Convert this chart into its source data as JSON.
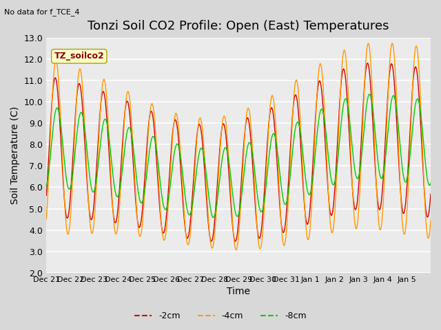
{
  "title": "Tonzi Soil CO2 Profile: Open (East) Temperatures",
  "subtitle": "No data for f_TCE_4",
  "ylabel": "Soil Temperature (C)",
  "xlabel": "Time",
  "legend_label": "TZ_soilco2",
  "ylim": [
    2.0,
    13.0
  ],
  "yticks": [
    2.0,
    3.0,
    4.0,
    5.0,
    6.0,
    7.0,
    8.0,
    9.0,
    10.0,
    11.0,
    12.0,
    13.0
  ],
  "xtick_labels": [
    "Dec 21",
    "Dec 22",
    "Dec 23",
    "Dec 24",
    "Dec 25",
    "Dec 26",
    "Dec 27",
    "Dec 28",
    "Dec 29",
    "Dec 30",
    "Dec 31",
    "Jan 1",
    "Jan 2",
    "Jan 3",
    "Jan 4",
    "Jan 5"
  ],
  "legend_entries": [
    "-2cm",
    "-4cm",
    "-8cm"
  ],
  "line_colors": [
    "#cc0000",
    "#ff9900",
    "#00cc00"
  ],
  "fig_bg": "#d8d8d8",
  "plot_bg": "#ebebeb",
  "grid_color": "#ffffff",
  "title_fontsize": 13,
  "label_fontsize": 10,
  "tick_fontsize": 9
}
